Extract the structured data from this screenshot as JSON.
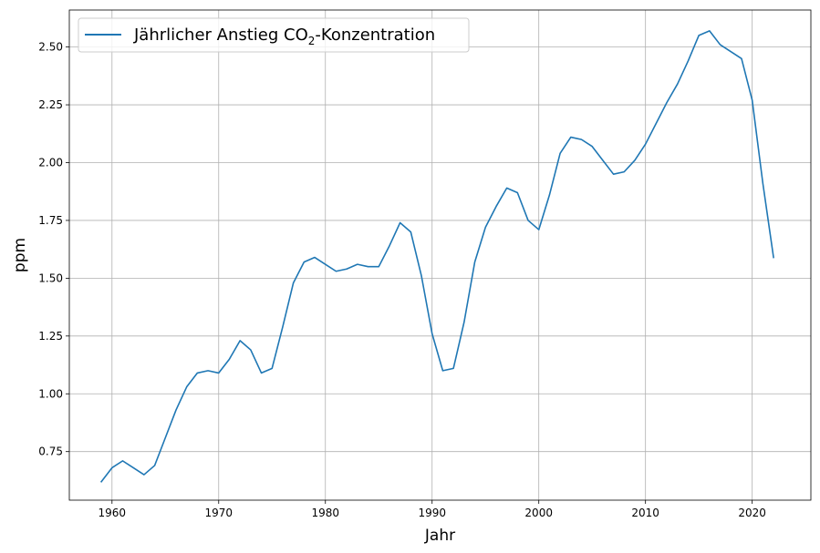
{
  "chart_data": {
    "type": "line",
    "xlabel": "Jahr",
    "ylabel": "ppm",
    "xlim": [
      1956,
      2025.5
    ],
    "ylim": [
      0.54,
      2.66
    ],
    "xticks": [
      1960,
      1970,
      1980,
      1990,
      2000,
      2010,
      2020
    ],
    "yticks": [
      0.75,
      1.0,
      1.25,
      1.5,
      1.75,
      2.0,
      2.25,
      2.5
    ],
    "ytick_labels": [
      "0.75",
      "1.00",
      "1.25",
      "1.50",
      "1.75",
      "2.00",
      "2.25",
      "2.50"
    ],
    "grid": true,
    "legend_position": "top-left",
    "colors": {
      "series": "#1f77b4"
    },
    "series": [
      {
        "name": "Jährlicher Anstieg CO₂-Konzentration",
        "name_parts": {
          "before": "Jährlicher Anstieg CO",
          "sub": "2",
          "after": "-Konzentration"
        },
        "x": [
          1959,
          1960,
          1961,
          1962,
          1963,
          1964,
          1965,
          1966,
          1967,
          1968,
          1969,
          1970,
          1971,
          1972,
          1973,
          1974,
          1975,
          1976,
          1977,
          1978,
          1979,
          1980,
          1981,
          1982,
          1983,
          1984,
          1985,
          1986,
          1987,
          1988,
          1989,
          1990,
          1991,
          1992,
          1993,
          1994,
          1995,
          1996,
          1997,
          1998,
          1999,
          2000,
          2001,
          2002,
          2003,
          2004,
          2005,
          2006,
          2007,
          2008,
          2009,
          2010,
          2011,
          2012,
          2013,
          2014,
          2015,
          2016,
          2017,
          2018,
          2019,
          2020,
          2021,
          2022
        ],
        "values": [
          0.62,
          0.68,
          0.71,
          0.68,
          0.65,
          0.69,
          0.81,
          0.93,
          1.03,
          1.09,
          1.1,
          1.09,
          1.15,
          1.23,
          1.19,
          1.09,
          1.11,
          1.29,
          1.48,
          1.57,
          1.59,
          1.56,
          1.53,
          1.54,
          1.56,
          1.55,
          1.55,
          1.64,
          1.74,
          1.7,
          1.51,
          1.26,
          1.1,
          1.11,
          1.31,
          1.57,
          1.72,
          1.81,
          1.89,
          1.87,
          1.75,
          1.71,
          1.86,
          2.04,
          2.11,
          2.1,
          2.07,
          2.01,
          1.95,
          1.96,
          2.01,
          2.08,
          2.17,
          2.26,
          2.34,
          2.44,
          2.55,
          2.57,
          2.51,
          2.48,
          2.45,
          2.27,
          1.91,
          1.59
        ]
      }
    ]
  }
}
